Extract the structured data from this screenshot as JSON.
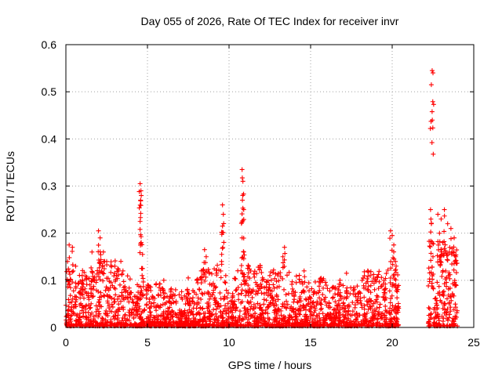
{
  "chart_data": {
    "type": "scatter",
    "title": "Day 055 of 2026, Rate Of TEC Index for receiver invr",
    "xlabel": "GPS time / hours",
    "ylabel": "ROTI / TECUs",
    "xlim": [
      0,
      25
    ],
    "ylim": [
      0,
      0.6
    ],
    "xticks": [
      0,
      5,
      10,
      15,
      20,
      25
    ],
    "yticks": [
      0,
      0.1,
      0.2,
      0.3,
      0.4,
      0.5,
      0.6
    ],
    "xtick_labels": [
      "0",
      "5",
      "10",
      "15",
      "20",
      "25"
    ],
    "ytick_labels": [
      "0",
      "0.1",
      "0.2",
      "0.3",
      "0.4",
      "0.5",
      "0.6"
    ],
    "grid": true,
    "marker": "plus",
    "color": "#ff0000",
    "gap_hours": [
      20.4,
      22.2
    ],
    "bands": [
      {
        "x0": 0.0,
        "x1": 2.0,
        "max": 0.12
      },
      {
        "x0": 2.0,
        "x1": 3.5,
        "max": 0.14
      },
      {
        "x0": 3.5,
        "x1": 4.5,
        "max": 0.11
      },
      {
        "x0": 4.5,
        "x1": 6.0,
        "max": 0.09
      },
      {
        "x0": 6.0,
        "x1": 8.0,
        "max": 0.08
      },
      {
        "x0": 8.0,
        "x1": 9.5,
        "max": 0.13
      },
      {
        "x0": 9.5,
        "x1": 10.3,
        "max": 0.07
      },
      {
        "x0": 10.3,
        "x1": 12.0,
        "max": 0.13
      },
      {
        "x0": 12.0,
        "x1": 14.0,
        "max": 0.12
      },
      {
        "x0": 14.0,
        "x1": 16.0,
        "max": 0.11
      },
      {
        "x0": 16.0,
        "x1": 18.0,
        "max": 0.09
      },
      {
        "x0": 18.0,
        "x1": 20.4,
        "max": 0.12
      },
      {
        "x0": 22.2,
        "x1": 24.0,
        "max": 0.18
      }
    ],
    "peaks": [
      {
        "x": 0.1,
        "y": 0.14
      },
      {
        "x": 0.2,
        "y": 0.175
      },
      {
        "x": 0.4,
        "y": 0.17
      },
      {
        "x": 0.6,
        "y": 0.13
      },
      {
        "x": 1.0,
        "y": 0.11
      },
      {
        "x": 1.6,
        "y": 0.16
      },
      {
        "x": 2.0,
        "y": 0.205
      },
      {
        "x": 2.1,
        "y": 0.19
      },
      {
        "x": 2.3,
        "y": 0.16
      },
      {
        "x": 2.5,
        "y": 0.14
      },
      {
        "x": 3.0,
        "y": 0.13
      },
      {
        "x": 3.5,
        "y": 0.12
      },
      {
        "x": 4.55,
        "y": 0.305
      },
      {
        "x": 4.6,
        "y": 0.29
      },
      {
        "x": 4.62,
        "y": 0.28
      },
      {
        "x": 4.58,
        "y": 0.27
      },
      {
        "x": 4.55,
        "y": 0.225
      },
      {
        "x": 4.7,
        "y": 0.155
      },
      {
        "x": 4.7,
        "y": 0.125
      },
      {
        "x": 6.0,
        "y": 0.1
      },
      {
        "x": 7.5,
        "y": 0.105
      },
      {
        "x": 8.5,
        "y": 0.165
      },
      {
        "x": 8.6,
        "y": 0.15
      },
      {
        "x": 8.3,
        "y": 0.12
      },
      {
        "x": 9.6,
        "y": 0.26
      },
      {
        "x": 9.65,
        "y": 0.24
      },
      {
        "x": 9.6,
        "y": 0.215
      },
      {
        "x": 9.55,
        "y": 0.155
      },
      {
        "x": 9.8,
        "y": 0.11
      },
      {
        "x": 10.8,
        "y": 0.335
      },
      {
        "x": 10.85,
        "y": 0.31
      },
      {
        "x": 10.82,
        "y": 0.27
      },
      {
        "x": 10.9,
        "y": 0.25
      },
      {
        "x": 10.8,
        "y": 0.19
      },
      {
        "x": 10.9,
        "y": 0.16
      },
      {
        "x": 11.2,
        "y": 0.13
      },
      {
        "x": 12.5,
        "y": 0.11
      },
      {
        "x": 13.4,
        "y": 0.17
      },
      {
        "x": 13.3,
        "y": 0.15
      },
      {
        "x": 14.6,
        "y": 0.12
      },
      {
        "x": 16.8,
        "y": 0.1
      },
      {
        "x": 17.2,
        "y": 0.115
      },
      {
        "x": 18.5,
        "y": 0.12
      },
      {
        "x": 19.5,
        "y": 0.1
      },
      {
        "x": 19.9,
        "y": 0.205
      },
      {
        "x": 20.0,
        "y": 0.195
      },
      {
        "x": 20.1,
        "y": 0.175
      },
      {
        "x": 20.2,
        "y": 0.14
      },
      {
        "x": 22.45,
        "y": 0.545
      },
      {
        "x": 22.5,
        "y": 0.54
      },
      {
        "x": 22.4,
        "y": 0.515
      },
      {
        "x": 22.35,
        "y": 0.25
      },
      {
        "x": 22.4,
        "y": 0.22
      },
      {
        "x": 22.5,
        "y": 0.15
      },
      {
        "x": 22.8,
        "y": 0.24
      },
      {
        "x": 23.0,
        "y": 0.23
      },
      {
        "x": 23.2,
        "y": 0.25
      },
      {
        "x": 23.4,
        "y": 0.22
      },
      {
        "x": 23.6,
        "y": 0.21
      },
      {
        "x": 23.8,
        "y": 0.19
      },
      {
        "x": 22.9,
        "y": 0.2
      },
      {
        "x": 23.1,
        "y": 0.18
      },
      {
        "x": 23.5,
        "y": 0.16
      },
      {
        "x": 23.9,
        "y": 0.15
      }
    ]
  }
}
